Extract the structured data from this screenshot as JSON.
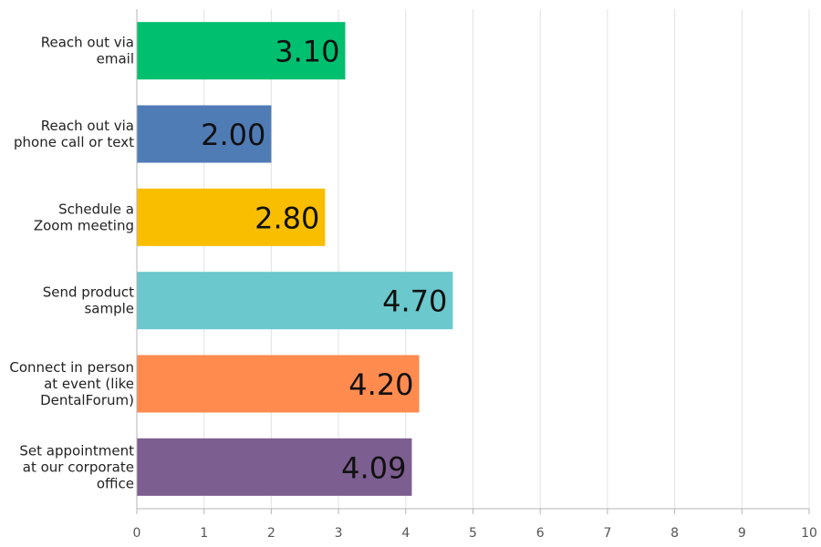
{
  "chart_data": {
    "type": "bar",
    "orientation": "horizontal",
    "categories": [
      [
        "Reach out via",
        "email"
      ],
      [
        "Reach out via",
        "phone call or text"
      ],
      [
        "Schedule a",
        "Zoom meeting"
      ],
      [
        "Send product",
        "sample"
      ],
      [
        "Connect in person",
        "at event (like",
        "DentalForum)"
      ],
      [
        "Set appointment",
        "at our corporate",
        "office"
      ]
    ],
    "values": [
      3.1,
      2.0,
      2.8,
      4.7,
      4.2,
      4.09
    ],
    "value_labels": [
      "3.10",
      "2.00",
      "2.80",
      "4.70",
      "4.20",
      "4.09"
    ],
    "colors": [
      "#00bf6f",
      "#507cb6",
      "#f9be00",
      "#6bc8cd",
      "#ff8b4f",
      "#7d5e90"
    ],
    "xlim": [
      0,
      10
    ],
    "x_ticks": [
      "0",
      "1",
      "2",
      "3",
      "4",
      "5",
      "6",
      "7",
      "8",
      "9",
      "10"
    ],
    "grid": true,
    "title": "",
    "xlabel": "",
    "ylabel": ""
  }
}
